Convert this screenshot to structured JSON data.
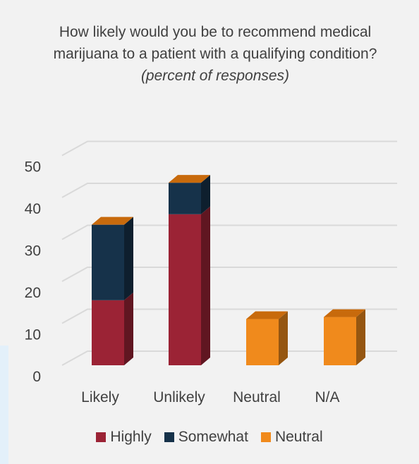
{
  "chart_data": {
    "type": "bar",
    "stacked": true,
    "title": "How likely would you be to recommend medical marijuana to a patient with a qualifying condition?",
    "subtitle": "(percent of responses)",
    "categories": [
      "Likely",
      "Unlikely",
      "Neutral",
      "N/A"
    ],
    "series": [
      {
        "name": "Highly",
        "color": "#9b2335",
        "values": [
          15.5,
          36,
          0,
          0
        ]
      },
      {
        "name": "Somewhat",
        "color": "#16324a",
        "values": [
          18,
          7.5,
          0,
          0
        ]
      },
      {
        "name": "Neutral",
        "color": "#f08a1c",
        "values": [
          0,
          0,
          11,
          11.5
        ]
      }
    ],
    "ylim": [
      0,
      50
    ],
    "yticks": [
      0,
      10,
      20,
      30,
      40,
      50
    ],
    "grid": true,
    "legend_position": "bottom"
  }
}
